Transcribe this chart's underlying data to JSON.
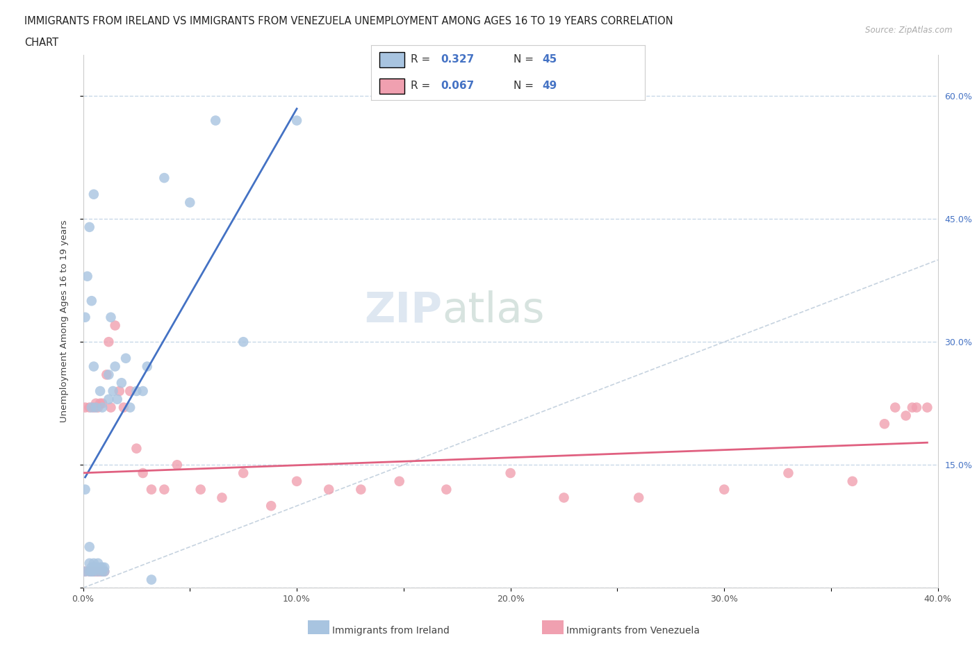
{
  "title_line1": "IMMIGRANTS FROM IRELAND VS IMMIGRANTS FROM VENEZUELA UNEMPLOYMENT AMONG AGES 16 TO 19 YEARS CORRELATION",
  "title_line2": "CHART",
  "source": "Source: ZipAtlas.com",
  "ylabel": "Unemployment Among Ages 16 to 19 years",
  "xlim": [
    0.0,
    0.4
  ],
  "ylim": [
    0.0,
    0.65
  ],
  "xticks": [
    0.0,
    0.05,
    0.1,
    0.15,
    0.2,
    0.25,
    0.3,
    0.35,
    0.4
  ],
  "xticklabels": [
    "0.0%",
    "",
    "10.0%",
    "",
    "20.0%",
    "",
    "30.0%",
    "",
    "40.0%"
  ],
  "yticks": [
    0.0,
    0.15,
    0.3,
    0.45,
    0.6
  ],
  "yticklabels_right": [
    "",
    "15.0%",
    "30.0%",
    "45.0%",
    "60.0%"
  ],
  "ireland_color": "#a8c4e0",
  "venezuela_color": "#f0a0b0",
  "ireland_line_color": "#4472c4",
  "venezuela_line_color": "#e06080",
  "diagonal_color": "#b8c8d8",
  "ireland_R": 0.327,
  "ireland_N": 45,
  "venezuela_R": 0.067,
  "venezuela_N": 49,
  "watermark_zip": "ZIP",
  "watermark_atlas": "atlas",
  "legend_label_ireland": "Immigrants from Ireland",
  "legend_label_venezuela": "Immigrants from Venezuela",
  "ireland_x": [
    0.001,
    0.001,
    0.001,
    0.003,
    0.003,
    0.003,
    0.004,
    0.004,
    0.004,
    0.005,
    0.005,
    0.005,
    0.006,
    0.006,
    0.007,
    0.007,
    0.008,
    0.008,
    0.009,
    0.009,
    0.009,
    0.01,
    0.01,
    0.012,
    0.012,
    0.013,
    0.014,
    0.015,
    0.016,
    0.018,
    0.02,
    0.022,
    0.025,
    0.028,
    0.03,
    0.032,
    0.002,
    0.003,
    0.004,
    0.005,
    0.038,
    0.05,
    0.062,
    0.075,
    0.1
  ],
  "ireland_y": [
    0.02,
    0.12,
    0.33,
    0.02,
    0.03,
    0.05,
    0.02,
    0.22,
    0.025,
    0.02,
    0.03,
    0.27,
    0.025,
    0.22,
    0.02,
    0.03,
    0.025,
    0.24,
    0.02,
    0.025,
    0.22,
    0.025,
    0.02,
    0.26,
    0.23,
    0.33,
    0.24,
    0.27,
    0.23,
    0.25,
    0.28,
    0.22,
    0.24,
    0.24,
    0.27,
    0.01,
    0.38,
    0.44,
    0.35,
    0.48,
    0.5,
    0.47,
    0.57,
    0.3,
    0.57
  ],
  "venezuela_x": [
    0.001,
    0.001,
    0.003,
    0.003,
    0.004,
    0.005,
    0.005,
    0.006,
    0.006,
    0.007,
    0.007,
    0.008,
    0.008,
    0.009,
    0.009,
    0.01,
    0.011,
    0.012,
    0.013,
    0.015,
    0.017,
    0.019,
    0.022,
    0.025,
    0.028,
    0.032,
    0.038,
    0.044,
    0.055,
    0.065,
    0.075,
    0.088,
    0.1,
    0.115,
    0.13,
    0.148,
    0.17,
    0.2,
    0.225,
    0.26,
    0.3,
    0.33,
    0.36,
    0.375,
    0.38,
    0.385,
    0.388,
    0.39,
    0.395
  ],
  "venezuela_y": [
    0.02,
    0.22,
    0.02,
    0.22,
    0.02,
    0.02,
    0.22,
    0.02,
    0.225,
    0.02,
    0.22,
    0.02,
    0.225,
    0.02,
    0.225,
    0.02,
    0.26,
    0.3,
    0.22,
    0.32,
    0.24,
    0.22,
    0.24,
    0.17,
    0.14,
    0.12,
    0.12,
    0.15,
    0.12,
    0.11,
    0.14,
    0.1,
    0.13,
    0.12,
    0.12,
    0.13,
    0.12,
    0.14,
    0.11,
    0.11,
    0.12,
    0.14,
    0.13,
    0.2,
    0.22,
    0.21,
    0.22,
    0.22,
    0.22
  ],
  "ireland_trend_x": [
    0.0,
    0.05
  ],
  "ireland_trend_y": [
    0.18,
    0.37
  ],
  "venezuela_trend_x": [
    0.0,
    0.4
  ],
  "venezuela_trend_y": [
    0.205,
    0.235
  ]
}
